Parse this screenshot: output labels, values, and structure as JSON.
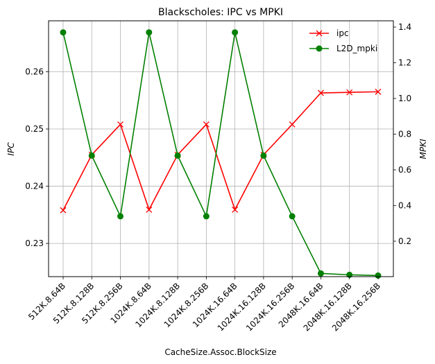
{
  "chart_data": {
    "type": "line",
    "title": "Blackscholes: IPC vs MPKI",
    "xlabel": "CacheSize.Assoc.BlockSize",
    "ylabel_left": "IPC",
    "ylabel_right": "MPKI",
    "categories": [
      "512K.8.64B",
      "512K.8.128B",
      "512K.8.256B",
      "1024K.8.64B",
      "1024K.8.128B",
      "1024K.8.256B",
      "1024K.16.64B",
      "1024K.16.128B",
      "1024K.16.256B",
      "2048K.16.64B",
      "2048K.16.128B",
      "2048K.16.256B"
    ],
    "series": [
      {
        "name": "ipc",
        "axis": "left",
        "color": "#ff0000",
        "marker": "x",
        "values": [
          0.2358,
          0.2455,
          0.2508,
          0.2359,
          0.2455,
          0.2508,
          0.2359,
          0.2455,
          0.2508,
          0.2563,
          0.2564,
          0.2565
        ]
      },
      {
        "name": "L2D_mpki",
        "axis": "right",
        "color": "#008000",
        "marker": "o",
        "values": [
          1.37,
          0.68,
          0.34,
          1.37,
          0.68,
          0.34,
          1.37,
          0.68,
          0.34,
          0.02,
          0.012,
          0.008
        ]
      }
    ],
    "ylim_left": [
      0.2242,
      0.2689
    ],
    "ylim_right": [
      0.0018,
      1.435
    ],
    "yticks_left": [
      "0.23",
      "0.24",
      "0.25",
      "0.26"
    ],
    "yticks_right": [
      "0.2",
      "0.4",
      "0.6",
      "0.8",
      "1.0",
      "1.2",
      "1.4"
    ],
    "grid": true,
    "legend_position": "top-right"
  }
}
